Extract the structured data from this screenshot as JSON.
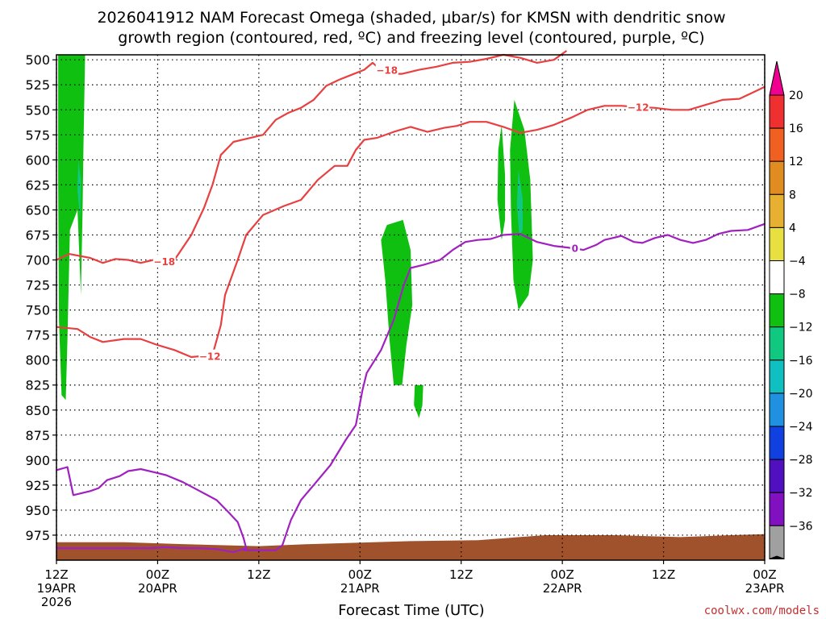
{
  "page": {
    "title_line1": "2026041912 NAM Forecast Omega (shaded, μbar/s) for KMSN with dendritic snow",
    "title_line2": "growth region (contoured, red, ºC) and freezing level (contoured, purple, ºC)",
    "credit": "coolwx.com/models"
  },
  "chart_data": {
    "type": "heatmap",
    "xlabel": "Forecast Time (UTC)",
    "ylabel": "",
    "x_unit": "hours after 2026-04-19 12Z",
    "xlim": [
      0,
      84
    ],
    "ylim": [
      1000,
      495
    ],
    "y_scale": "pressure (hPa), increasing downward",
    "grid": true,
    "y_ticks": [
      500,
      525,
      550,
      575,
      600,
      625,
      650,
      675,
      700,
      725,
      750,
      775,
      800,
      825,
      850,
      875,
      900,
      925,
      950,
      975
    ],
    "x_ticks": [
      {
        "x": 0,
        "line1": "12Z",
        "line2": "19APR",
        "line3": "2026"
      },
      {
        "x": 12,
        "line1": "00Z",
        "line2": "20APR",
        "line3": ""
      },
      {
        "x": 24,
        "line1": "12Z",
        "line2": "",
        "line3": ""
      },
      {
        "x": 36,
        "line1": "00Z",
        "line2": "21APR",
        "line3": ""
      },
      {
        "x": 48,
        "line1": "12Z",
        "line2": "",
        "line3": ""
      },
      {
        "x": 60,
        "line1": "00Z",
        "line2": "22APR",
        "line3": ""
      },
      {
        "x": 72,
        "line1": "12Z",
        "line2": "",
        "line3": ""
      },
      {
        "x": 84,
        "line1": "00Z",
        "line2": "23APR",
        "line3": ""
      }
    ],
    "colorbar": {
      "labels": [
        "20",
        "16",
        "12",
        "8",
        "4",
        "−4",
        "−8",
        "−12",
        "−16",
        "−20",
        "−24",
        "−28",
        "−32",
        "−36"
      ],
      "colors": [
        "#f03030",
        "#f06020",
        "#e08c20",
        "#e8b030",
        "#e8e040",
        "#ffffff",
        "#10c010",
        "#10c880",
        "#10c0c0",
        "#2090e0",
        "#1040e0",
        "#5010c0",
        "#8010c0",
        "#a0a0a0"
      ],
      "top_color": "#f00090",
      "bottom_color": "#000000"
    },
    "omega_regions": [
      {
        "color": "#10c010",
        "points": [
          [
            0.2,
            495
          ],
          [
            3.4,
            495
          ],
          [
            3.2,
            590
          ],
          [
            3.1,
            650
          ],
          [
            2.9,
            735
          ],
          [
            2.5,
            650
          ],
          [
            1.6,
            670
          ],
          [
            1.3,
            780
          ],
          [
            1.1,
            840
          ],
          [
            0.6,
            835
          ],
          [
            0.3,
            760
          ],
          [
            0.2,
            620
          ]
        ]
      },
      {
        "color": "#10c880",
        "points": [
          [
            2.6,
            600
          ],
          [
            2.9,
            620
          ],
          [
            2.8,
            660
          ],
          [
            2.5,
            630
          ]
        ]
      },
      {
        "color": "#10c010",
        "points": [
          [
            39.2,
            665
          ],
          [
            41.1,
            660
          ],
          [
            42.0,
            690
          ],
          [
            42.2,
            745
          ],
          [
            41.5,
            785
          ],
          [
            41.0,
            825
          ],
          [
            40.0,
            825
          ],
          [
            39.5,
            780
          ],
          [
            39.0,
            720
          ],
          [
            38.5,
            680
          ]
        ]
      },
      {
        "color": "#10c010",
        "points": [
          [
            42.5,
            825
          ],
          [
            43.5,
            825
          ],
          [
            43.4,
            845
          ],
          [
            43.0,
            858
          ],
          [
            42.4,
            845
          ]
        ]
      },
      {
        "color": "#10c010",
        "points": [
          [
            52.8,
            565
          ],
          [
            53.2,
            615
          ],
          [
            53.2,
            660
          ],
          [
            52.8,
            680
          ],
          [
            52.3,
            640
          ],
          [
            52.4,
            590
          ]
        ]
      },
      {
        "color": "#10c010",
        "points": [
          [
            54.3,
            540
          ],
          [
            55.5,
            570
          ],
          [
            56.2,
            620
          ],
          [
            56.5,
            700
          ],
          [
            56.0,
            735
          ],
          [
            54.8,
            750
          ],
          [
            54.2,
            720
          ],
          [
            53.9,
            650
          ],
          [
            53.8,
            590
          ]
        ]
      },
      {
        "color": "#10c880",
        "points": [
          [
            54.8,
            610
          ],
          [
            55.3,
            640
          ],
          [
            55.3,
            670
          ],
          [
            54.9,
            675
          ],
          [
            54.6,
            645
          ]
        ]
      }
    ],
    "terrain": {
      "color": "#a0522d",
      "upper_edge": [
        [
          0,
          982
        ],
        [
          8,
          982
        ],
        [
          15,
          984
        ],
        [
          24,
          986
        ],
        [
          30,
          984
        ],
        [
          42,
          981
        ],
        [
          50,
          980
        ],
        [
          58,
          975
        ],
        [
          66,
          975
        ],
        [
          74,
          977
        ],
        [
          80,
          975
        ],
        [
          84,
          974
        ]
      ]
    },
    "series": [
      {
        "color": "#e84040",
        "points": [
          [
            0,
            700
          ],
          [
            1.5,
            694
          ],
          [
            4,
            698
          ],
          [
            5.5,
            703
          ],
          [
            7,
            699
          ],
          [
            8.5,
            700
          ],
          [
            10,
            703
          ],
          [
            11.5,
            700
          ],
          [
            14,
            700
          ],
          [
            16,
            675
          ],
          [
            17.5,
            648
          ],
          [
            18.5,
            625
          ],
          [
            19.5,
            595
          ],
          [
            21,
            582
          ],
          [
            23,
            578
          ],
          [
            24.5,
            575
          ],
          [
            26,
            560
          ],
          [
            27.5,
            553
          ],
          [
            29,
            548
          ],
          [
            30.5,
            540
          ],
          [
            32,
            526
          ],
          [
            33.5,
            520
          ],
          [
            35,
            515
          ],
          [
            36.5,
            510
          ],
          [
            37.5,
            503
          ],
          [
            39,
            514
          ],
          [
            41,
            514
          ],
          [
            43,
            510
          ],
          [
            45,
            507
          ],
          [
            47,
            503
          ],
          [
            49,
            502
          ],
          [
            51,
            499
          ],
          [
            53,
            495
          ],
          [
            55,
            498
          ],
          [
            57,
            503
          ],
          [
            59,
            500
          ],
          [
            60.5,
            491
          ]
        ]
      },
      {
        "color": "#e84040",
        "points": [
          [
            0,
            767
          ],
          [
            2.5,
            769
          ],
          [
            4,
            777
          ],
          [
            5.5,
            782
          ],
          [
            8,
            779
          ],
          [
            10,
            779
          ],
          [
            12,
            785
          ],
          [
            14,
            790
          ],
          [
            16,
            797
          ],
          [
            18.5,
            795
          ],
          [
            19.5,
            765
          ],
          [
            20,
            735
          ],
          [
            21.5,
            700
          ],
          [
            22.5,
            675
          ],
          [
            24.5,
            655
          ],
          [
            27,
            646
          ],
          [
            29,
            640
          ],
          [
            30,
            630
          ],
          [
            31,
            620
          ],
          [
            33,
            606
          ],
          [
            34.5,
            606
          ],
          [
            35.5,
            590
          ],
          [
            36.5,
            580
          ],
          [
            38,
            578
          ],
          [
            40,
            572
          ],
          [
            42,
            567
          ],
          [
            44,
            572
          ],
          [
            46,
            568
          ],
          [
            47.5,
            566
          ],
          [
            49,
            562
          ],
          [
            51,
            562
          ],
          [
            53,
            567
          ],
          [
            55,
            573
          ],
          [
            57,
            570
          ],
          [
            59,
            565
          ],
          [
            61,
            558
          ],
          [
            63,
            550
          ],
          [
            65,
            546
          ],
          [
            67,
            546
          ],
          [
            69,
            547
          ],
          [
            71,
            548
          ],
          [
            73,
            550
          ],
          [
            75,
            550
          ],
          [
            77,
            545
          ],
          [
            79,
            540
          ],
          [
            81,
            539
          ],
          [
            82.5,
            533
          ],
          [
            84,
            527
          ]
        ]
      },
      {
        "color": "#a020c0",
        "points": [
          [
            0,
            910
          ],
          [
            1.3,
            907
          ],
          [
            2,
            935
          ],
          [
            4,
            931
          ],
          [
            5,
            928
          ],
          [
            6,
            920
          ],
          [
            7.5,
            916
          ],
          [
            8.5,
            911
          ],
          [
            10,
            909
          ],
          [
            11.5,
            912
          ],
          [
            13,
            915
          ],
          [
            15,
            922
          ],
          [
            17,
            931
          ],
          [
            19,
            940
          ],
          [
            20.5,
            953
          ],
          [
            21.5,
            962
          ],
          [
            22.2,
            978
          ],
          [
            22.5,
            988
          ],
          [
            21,
            992
          ],
          [
            19,
            989
          ],
          [
            17,
            988
          ],
          [
            15,
            988
          ],
          [
            13,
            987
          ],
          [
            11,
            988
          ],
          [
            9,
            988
          ],
          [
            7,
            988
          ],
          [
            5,
            988
          ],
          [
            3,
            988
          ],
          [
            1,
            988
          ],
          [
            0,
            988
          ]
        ]
      },
      {
        "color": "#a020c0",
        "points": [
          [
            22.2,
            990
          ],
          [
            24.5,
            990
          ],
          [
            26,
            990
          ],
          [
            26.8,
            985
          ],
          [
            27.8,
            960
          ],
          [
            29,
            940
          ],
          [
            30.5,
            925
          ],
          [
            32.5,
            905
          ],
          [
            34.3,
            880
          ],
          [
            35.5,
            865
          ],
          [
            36.3,
            830
          ],
          [
            36.8,
            813
          ],
          [
            38.5,
            790
          ],
          [
            40,
            760
          ],
          [
            41.2,
            725
          ],
          [
            42,
            708
          ],
          [
            43.5,
            705
          ],
          [
            45.5,
            700
          ],
          [
            47,
            690
          ],
          [
            48.5,
            682
          ],
          [
            50,
            680
          ],
          [
            51.5,
            679
          ],
          [
            53,
            675
          ],
          [
            55,
            674
          ],
          [
            57,
            682
          ],
          [
            59,
            686
          ],
          [
            61,
            688
          ],
          [
            62.5,
            690
          ],
          [
            64,
            685
          ],
          [
            65,
            680
          ],
          [
            67,
            676
          ],
          [
            68.5,
            682
          ],
          [
            69.5,
            683
          ],
          [
            71,
            678
          ],
          [
            72.5,
            675
          ],
          [
            74,
            680
          ],
          [
            75.5,
            683
          ],
          [
            77,
            680
          ],
          [
            78.5,
            674
          ],
          [
            80,
            671
          ],
          [
            82,
            670
          ],
          [
            84,
            664
          ]
        ]
      }
    ],
    "contour_labels": [
      {
        "text": "−18",
        "x": 39.2,
        "y": 510,
        "color": "#e84040"
      },
      {
        "text": "−18",
        "x": 12.8,
        "y": 701,
        "color": "#e84040"
      },
      {
        "text": "−12",
        "x": 18.2,
        "y": 796,
        "color": "#e84040"
      },
      {
        "text": "−12",
        "x": 69.0,
        "y": 547,
        "color": "#e84040"
      },
      {
        "text": "0",
        "x": 61.5,
        "y": 688,
        "color": "#a020c0"
      }
    ]
  }
}
